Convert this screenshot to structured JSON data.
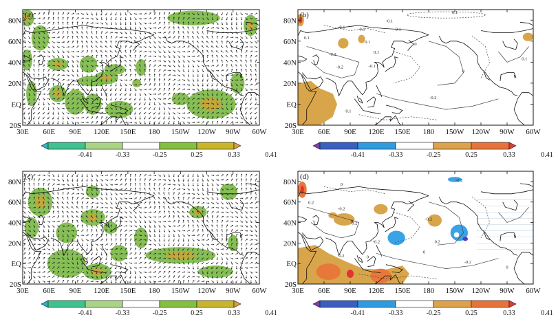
{
  "panels": [
    {
      "id": "a",
      "label": "(a)",
      "type": "wind-vectors-shaded",
      "palette": "greens"
    },
    {
      "id": "b",
      "label": "(b)",
      "type": "contour-shaded",
      "palette": "diverging",
      "contour_labels": [
        "0.1",
        "-0.1",
        "0.1",
        "-0.1",
        "-0.1",
        "0.1",
        "-0.2",
        "0.1",
        "0.1",
        "-0.2",
        "0.1",
        "0",
        "-0.1",
        "-0.2",
        "0",
        "0.1"
      ]
    },
    {
      "id": "c",
      "label": "(c)",
      "type": "wind-vectors-shaded",
      "palette": "greens"
    },
    {
      "id": "d",
      "label": "(d)",
      "type": "contour-shaded",
      "palette": "diverging",
      "contour_labels": [
        "-0.2",
        "0",
        "0.2",
        "-0.2",
        "-0.2",
        "0",
        "0.2",
        "0.2",
        "-0.2",
        "0",
        "0",
        "0.2",
        "-0.2",
        "0"
      ]
    }
  ],
  "axes": {
    "y_ticks": [
      "80N",
      "60N",
      "40N",
      "20N",
      "EQ",
      "20S"
    ],
    "x_ticks": [
      "30E",
      "60E",
      "90E",
      "120E",
      "150E",
      "180",
      "150W",
      "120W",
      "90W",
      "60W"
    ]
  },
  "colorbars": {
    "greens": {
      "tick_labels": [
        "-0.41",
        "-0.33",
        "-0.25",
        "0.25",
        "0.33",
        "0.41"
      ],
      "colors": [
        "#2fb6c4",
        "#3fc28f",
        "#a9d486",
        "#ffffff",
        "#84c040",
        "#c9b52b",
        "#d9a13e"
      ]
    },
    "diverging": {
      "tick_labels": [
        "-0.41",
        "-0.33",
        "-0.25",
        "0.25",
        "0.33",
        "0.41"
      ],
      "colors": [
        "#7b3fa6",
        "#3a5fc0",
        "#2f9ce0",
        "#ffffff",
        "#dda24a",
        "#e8733a",
        "#e03a3a"
      ]
    }
  },
  "shading_colors": {
    "green": "#79b843",
    "light_green": "#a6d070",
    "olive": "#c6a53a",
    "tan": "#d9a54b",
    "orange": "#e8783a",
    "red": "#e23333",
    "blue": "#3aa3e5",
    "navy": "#5a3cb8"
  }
}
